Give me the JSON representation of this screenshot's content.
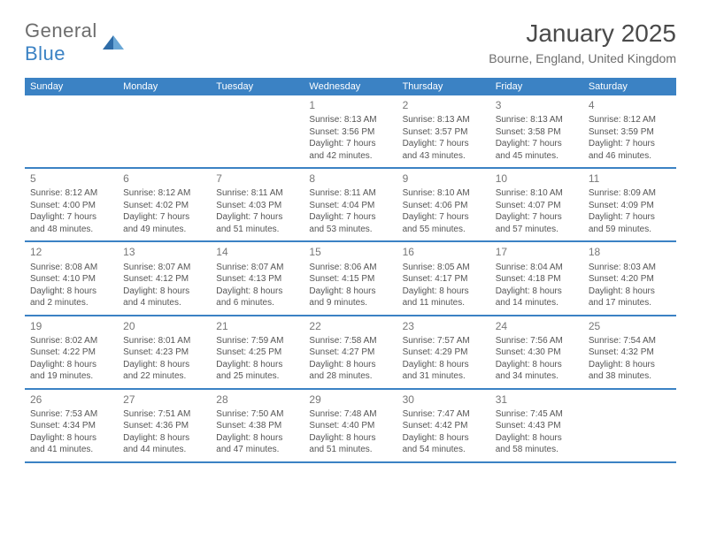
{
  "brand": {
    "word1": "General",
    "word2": "Blue"
  },
  "title": "January 2025",
  "location": "Bourne, England, United Kingdom",
  "colors": {
    "header_bg": "#3b82c4",
    "rule": "#3b82c4",
    "text": "#555555",
    "muted": "#777777",
    "brand_gray": "#6d6d6d",
    "brand_blue": "#3b82c4"
  },
  "weekdays": [
    "Sunday",
    "Monday",
    "Tuesday",
    "Wednesday",
    "Thursday",
    "Friday",
    "Saturday"
  ],
  "weeks": [
    [
      null,
      null,
      null,
      {
        "n": "1",
        "sr": "8:13 AM",
        "ss": "3:56 PM",
        "dl1": "7 hours",
        "dl2": "and 42 minutes."
      },
      {
        "n": "2",
        "sr": "8:13 AM",
        "ss": "3:57 PM",
        "dl1": "7 hours",
        "dl2": "and 43 minutes."
      },
      {
        "n": "3",
        "sr": "8:13 AM",
        "ss": "3:58 PM",
        "dl1": "7 hours",
        "dl2": "and 45 minutes."
      },
      {
        "n": "4",
        "sr": "8:12 AM",
        "ss": "3:59 PM",
        "dl1": "7 hours",
        "dl2": "and 46 minutes."
      }
    ],
    [
      {
        "n": "5",
        "sr": "8:12 AM",
        "ss": "4:00 PM",
        "dl1": "7 hours",
        "dl2": "and 48 minutes."
      },
      {
        "n": "6",
        "sr": "8:12 AM",
        "ss": "4:02 PM",
        "dl1": "7 hours",
        "dl2": "and 49 minutes."
      },
      {
        "n": "7",
        "sr": "8:11 AM",
        "ss": "4:03 PM",
        "dl1": "7 hours",
        "dl2": "and 51 minutes."
      },
      {
        "n": "8",
        "sr": "8:11 AM",
        "ss": "4:04 PM",
        "dl1": "7 hours",
        "dl2": "and 53 minutes."
      },
      {
        "n": "9",
        "sr": "8:10 AM",
        "ss": "4:06 PM",
        "dl1": "7 hours",
        "dl2": "and 55 minutes."
      },
      {
        "n": "10",
        "sr": "8:10 AM",
        "ss": "4:07 PM",
        "dl1": "7 hours",
        "dl2": "and 57 minutes."
      },
      {
        "n": "11",
        "sr": "8:09 AM",
        "ss": "4:09 PM",
        "dl1": "7 hours",
        "dl2": "and 59 minutes."
      }
    ],
    [
      {
        "n": "12",
        "sr": "8:08 AM",
        "ss": "4:10 PM",
        "dl1": "8 hours",
        "dl2": "and 2 minutes."
      },
      {
        "n": "13",
        "sr": "8:07 AM",
        "ss": "4:12 PM",
        "dl1": "8 hours",
        "dl2": "and 4 minutes."
      },
      {
        "n": "14",
        "sr": "8:07 AM",
        "ss": "4:13 PM",
        "dl1": "8 hours",
        "dl2": "and 6 minutes."
      },
      {
        "n": "15",
        "sr": "8:06 AM",
        "ss": "4:15 PM",
        "dl1": "8 hours",
        "dl2": "and 9 minutes."
      },
      {
        "n": "16",
        "sr": "8:05 AM",
        "ss": "4:17 PM",
        "dl1": "8 hours",
        "dl2": "and 11 minutes."
      },
      {
        "n": "17",
        "sr": "8:04 AM",
        "ss": "4:18 PM",
        "dl1": "8 hours",
        "dl2": "and 14 minutes."
      },
      {
        "n": "18",
        "sr": "8:03 AM",
        "ss": "4:20 PM",
        "dl1": "8 hours",
        "dl2": "and 17 minutes."
      }
    ],
    [
      {
        "n": "19",
        "sr": "8:02 AM",
        "ss": "4:22 PM",
        "dl1": "8 hours",
        "dl2": "and 19 minutes."
      },
      {
        "n": "20",
        "sr": "8:01 AM",
        "ss": "4:23 PM",
        "dl1": "8 hours",
        "dl2": "and 22 minutes."
      },
      {
        "n": "21",
        "sr": "7:59 AM",
        "ss": "4:25 PM",
        "dl1": "8 hours",
        "dl2": "and 25 minutes."
      },
      {
        "n": "22",
        "sr": "7:58 AM",
        "ss": "4:27 PM",
        "dl1": "8 hours",
        "dl2": "and 28 minutes."
      },
      {
        "n": "23",
        "sr": "7:57 AM",
        "ss": "4:29 PM",
        "dl1": "8 hours",
        "dl2": "and 31 minutes."
      },
      {
        "n": "24",
        "sr": "7:56 AM",
        "ss": "4:30 PM",
        "dl1": "8 hours",
        "dl2": "and 34 minutes."
      },
      {
        "n": "25",
        "sr": "7:54 AM",
        "ss": "4:32 PM",
        "dl1": "8 hours",
        "dl2": "and 38 minutes."
      }
    ],
    [
      {
        "n": "26",
        "sr": "7:53 AM",
        "ss": "4:34 PM",
        "dl1": "8 hours",
        "dl2": "and 41 minutes."
      },
      {
        "n": "27",
        "sr": "7:51 AM",
        "ss": "4:36 PM",
        "dl1": "8 hours",
        "dl2": "and 44 minutes."
      },
      {
        "n": "28",
        "sr": "7:50 AM",
        "ss": "4:38 PM",
        "dl1": "8 hours",
        "dl2": "and 47 minutes."
      },
      {
        "n": "29",
        "sr": "7:48 AM",
        "ss": "4:40 PM",
        "dl1": "8 hours",
        "dl2": "and 51 minutes."
      },
      {
        "n": "30",
        "sr": "7:47 AM",
        "ss": "4:42 PM",
        "dl1": "8 hours",
        "dl2": "and 54 minutes."
      },
      {
        "n": "31",
        "sr": "7:45 AM",
        "ss": "4:43 PM",
        "dl1": "8 hours",
        "dl2": "and 58 minutes."
      },
      null
    ]
  ],
  "labels": {
    "sunrise": "Sunrise:",
    "sunset": "Sunset:",
    "daylight": "Daylight:"
  }
}
